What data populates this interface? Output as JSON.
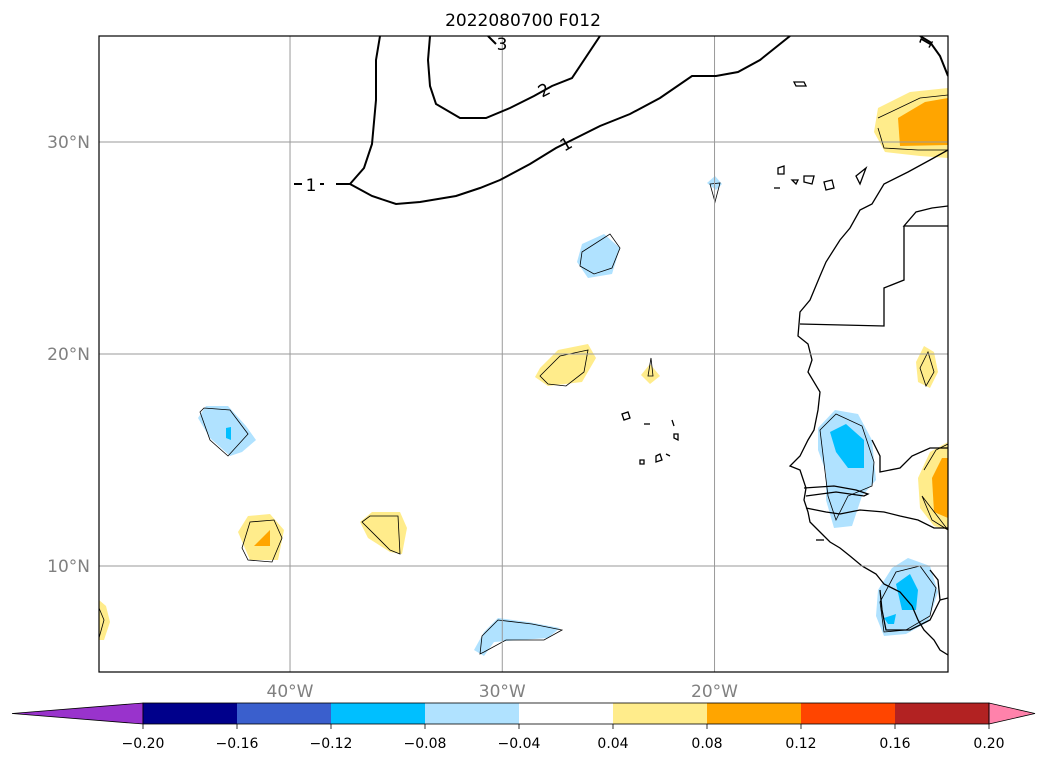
{
  "chart_data": {
    "type": "heatmap",
    "title": "2022080700 F012",
    "map_extent": {
      "lon": [
        -49,
        -9
      ],
      "lat": [
        5,
        35
      ]
    },
    "lon_ticks": [
      {
        "value": -40,
        "label": "40°W"
      },
      {
        "value": -30,
        "label": "30°W"
      },
      {
        "value": -20,
        "label": "20°W"
      }
    ],
    "lat_ticks": [
      {
        "value": 30,
        "label": "30°N"
      },
      {
        "value": 20,
        "label": "20°N"
      },
      {
        "value": 10,
        "label": "10°N"
      }
    ],
    "grid": true,
    "colorbar": {
      "orientation": "horizontal",
      "extend": "both",
      "levels": [
        -0.2,
        -0.16,
        -0.12,
        -0.08,
        -0.04,
        0.04,
        0.08,
        0.12,
        0.16,
        0.2
      ],
      "tick_labels": [
        "−0.20",
        "−0.16",
        "−0.12",
        "−0.08",
        "−0.04",
        "0.04",
        "0.08",
        "0.12",
        "0.16",
        "0.20"
      ],
      "colors": [
        "#9933cc",
        "#00008b",
        "#3a5fcd",
        "#00bfff",
        "#b0e2ff",
        "#ffffff",
        "#ffec8b",
        "#ffa500",
        "#ff4500",
        "#b22222",
        "#ff82ab"
      ]
    },
    "contour_lines": [
      {
        "level": 1,
        "label": "1"
      },
      {
        "level": 2,
        "label": "2"
      },
      {
        "level": 3,
        "label": "3"
      }
    ],
    "filled_regions": [
      {
        "name": "canary-coast-positive",
        "center": [
          -10.5,
          30.8
        ],
        "max_class": 0.08
      },
      {
        "name": "azores-south-negative",
        "center": [
          -20.9,
          28.0
        ],
        "max_class": -0.04
      },
      {
        "name": "central-atlantic-negative",
        "center": [
          -25.5,
          24.6
        ],
        "max_class": -0.04
      },
      {
        "name": "central-atlantic-positive",
        "center": [
          -27.7,
          19.5
        ],
        "max_class": 0.04
      },
      {
        "name": "capeverde-north-positive",
        "center": [
          -23.6,
          19.0
        ],
        "max_class": 0.04
      },
      {
        "name": "west-negative",
        "center": [
          -44.0,
          16.6
        ],
        "max_class": -0.08
      },
      {
        "name": "west-positive",
        "center": [
          -42.3,
          11.5
        ],
        "max_class": 0.08
      },
      {
        "name": "west-positive-2",
        "center": [
          -36.5,
          11.7
        ],
        "max_class": 0.04
      },
      {
        "name": "edge-positive",
        "center": [
          -48.6,
          7.1
        ],
        "max_class": 0.04
      },
      {
        "name": "south-negative",
        "center": [
          -30.2,
          6.6
        ],
        "max_class": -0.04
      },
      {
        "name": "senegal-negative",
        "center": [
          -13.7,
          14.6
        ],
        "max_class": -0.08
      },
      {
        "name": "mali-positive",
        "center": [
          -9.5,
          13.8
        ],
        "max_class": 0.08
      },
      {
        "name": "mauritania-positive",
        "center": [
          -10.4,
          19.3
        ],
        "max_class": 0.04
      },
      {
        "name": "guinea-negative",
        "center": [
          -10.7,
          8.2
        ],
        "max_class": -0.08
      }
    ]
  }
}
